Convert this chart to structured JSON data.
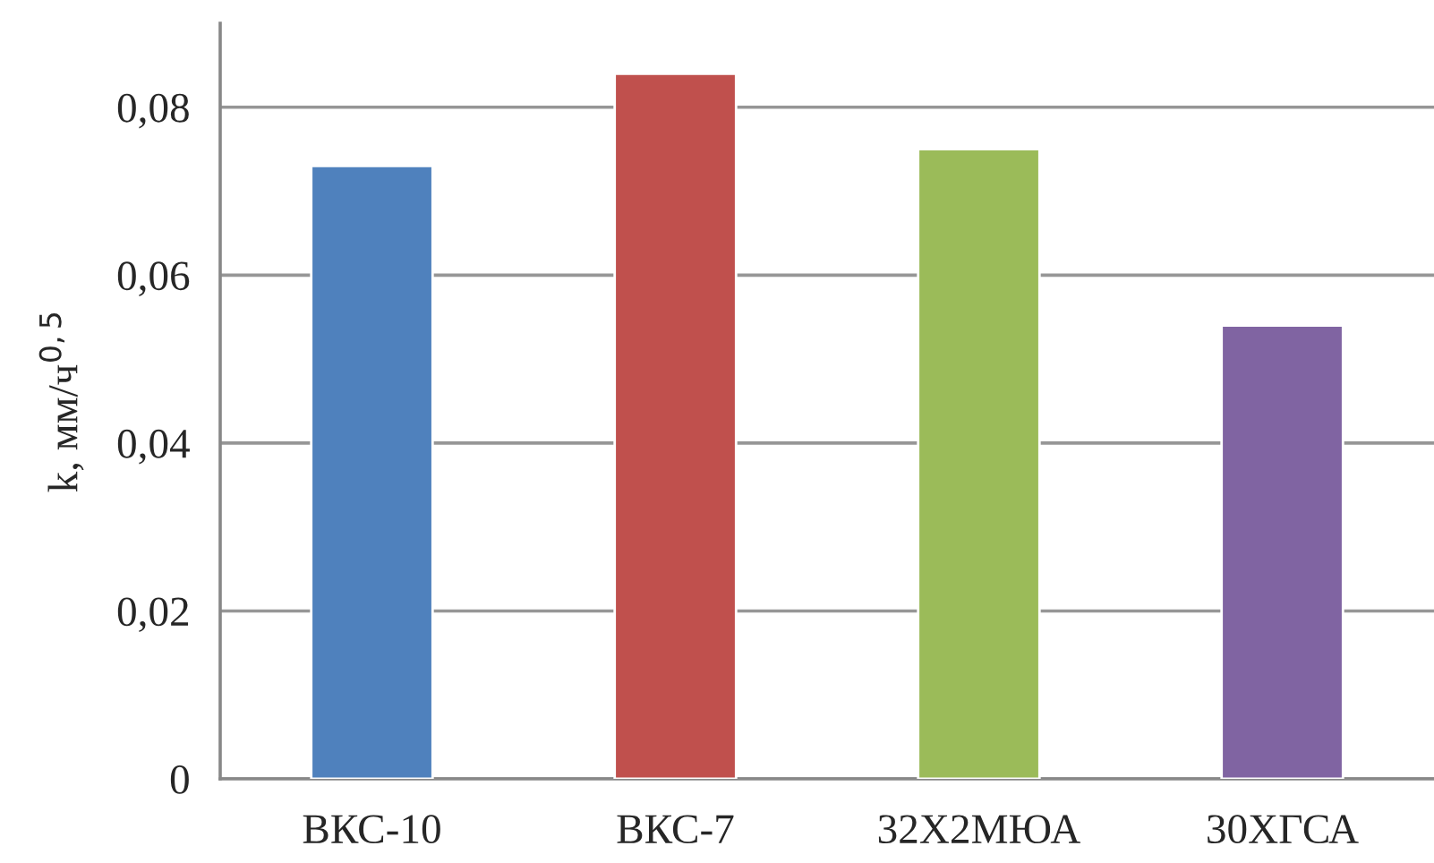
{
  "chart_data": {
    "type": "bar",
    "ylabel": "k, мм/ч$^{0,5}$",
    "categories": [
      "ВКС-10",
      "ВКС-7",
      "32Х2МЮА",
      "30ХГСА"
    ],
    "values": [
      0.073,
      0.084,
      0.075,
      0.054
    ],
    "colors": [
      "#4f81bd",
      "#c0504d",
      "#9bbb59",
      "#8064a2"
    ],
    "ylim": [
      0,
      0.09
    ],
    "yticks": [
      0,
      {
        "value": 0.02,
        "label": "0,02"
      },
      {
        "value": 0.04,
        "label": "0,04"
      },
      {
        "value": 0.06,
        "label": "0,06"
      },
      {
        "value": 0.08,
        "label": "0,08"
      }
    ],
    "grid": "y"
  }
}
